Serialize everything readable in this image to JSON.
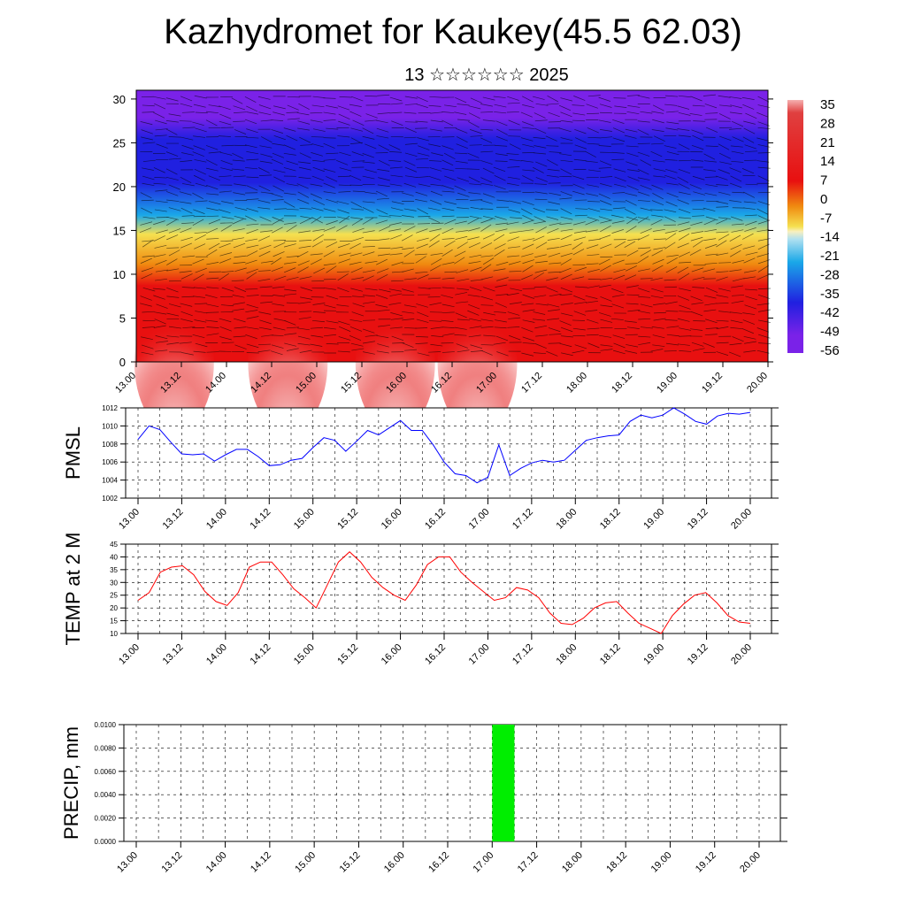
{
  "header": {
    "title": "Kazhydromet for Kaukey(45.5 62.03)",
    "subtitle": "13 ☆☆☆☆☆☆ 2025"
  },
  "time_ticks": [
    "13.00",
    "13.12",
    "14.00",
    "14.12",
    "15.00",
    "15.12",
    "16.00",
    "16.12",
    "17.00",
    "17.12",
    "18.00",
    "18.12",
    "19.00",
    "19.12",
    "20.00"
  ],
  "chart_data": [
    {
      "id": "cross-section",
      "type": "heatmap",
      "yticks": [
        0,
        5,
        10,
        15,
        20,
        25,
        30
      ],
      "ylim": [
        0,
        31
      ],
      "colorbar_labels": [
        "35",
        "28",
        "21",
        "14",
        "7",
        "0",
        "-7",
        "-14",
        "-21",
        "-28",
        "-35",
        "-42",
        "-49",
        "-56"
      ],
      "colors": {
        "cold": "#7a22e8",
        "blue": "#2020e0",
        "cyan": "#1aa8e8",
        "yellow": "#f5e050",
        "orange": "#f08a10",
        "red": "#e81010",
        "pink": "#f5b0b0"
      }
    },
    {
      "id": "pmsl",
      "type": "line",
      "ylabel": "PMSL",
      "ylim": [
        1002,
        1012
      ],
      "yticks": [
        "1002",
        "1004",
        "1006",
        "1008",
        "1010",
        "1012"
      ],
      "color": "#0000ff",
      "values": [
        1008.5,
        1010,
        1009.6,
        1008.2,
        1006.9,
        1006.8,
        1006.9,
        1006.1,
        1006.8,
        1007.4,
        1007.4,
        1006.6,
        1005.6,
        1005.7,
        1006.2,
        1006.4,
        1007.6,
        1008.7,
        1008.4,
        1007.2,
        1008.3,
        1009.5,
        1009,
        1009.8,
        1010.6,
        1009.5,
        1009.5,
        1007.9,
        1006,
        1004.7,
        1004.5,
        1003.7,
        1004.3,
        1007.9,
        1004.5,
        1005.3,
        1005.9,
        1006.2,
        1006,
        1006.2,
        1007.3,
        1008.4,
        1008.7,
        1008.9,
        1009,
        1010.5,
        1011.2,
        1010.9,
        1011.2,
        1012,
        1011.3,
        1010.5,
        1010.2,
        1011.1,
        1011.4,
        1011.3,
        1011.5
      ]
    },
    {
      "id": "temp2m",
      "type": "line",
      "ylabel": "TEMP at 2 M",
      "ylim": [
        10,
        45
      ],
      "yticks": [
        "10",
        "15",
        "20",
        "25",
        "30",
        "35",
        "40",
        "45"
      ],
      "color": "#ff0000",
      "values": [
        23,
        26,
        34,
        36,
        36.5,
        33,
        26.5,
        22.5,
        21,
        26,
        36,
        38,
        38,
        33,
        27.5,
        24,
        20,
        29,
        38,
        42,
        38,
        32,
        28,
        25,
        23,
        29,
        37,
        40,
        40,
        34,
        30,
        26.5,
        23,
        24,
        28,
        27,
        24,
        18,
        14,
        13.5,
        16,
        20,
        22,
        22.5,
        18,
        14,
        12,
        10,
        17,
        21.5,
        25,
        26,
        22,
        17,
        14.5,
        14
      ]
    },
    {
      "id": "precip",
      "type": "bar",
      "ylabel": "PRECIP, mm",
      "ylim": [
        0,
        0.01
      ],
      "yticks": [
        "0.0000",
        "0.0020",
        "0.0040",
        "0.0060",
        "0.0080",
        "0.0100"
      ],
      "color": "#00ee00",
      "bars": [
        {
          "start_hour": 96,
          "end_hour": 102,
          "value": 0.01
        }
      ]
    }
  ]
}
